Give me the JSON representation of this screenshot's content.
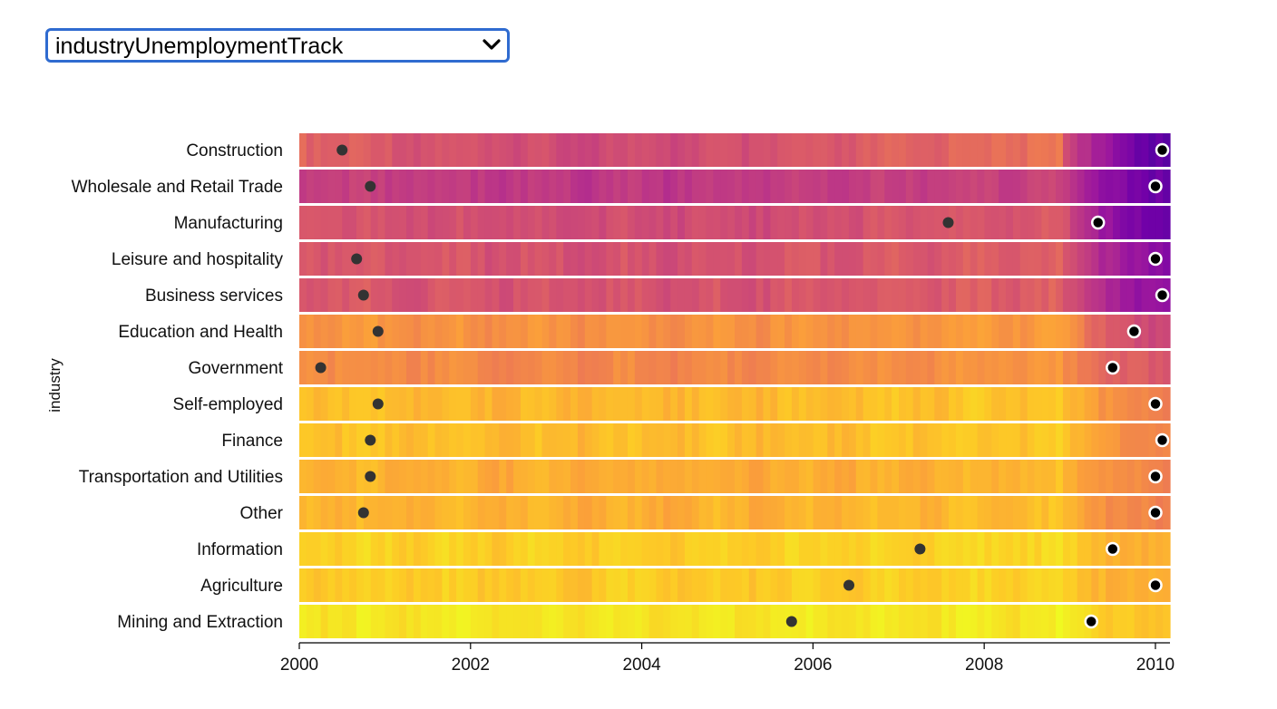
{
  "controls": {
    "dataset_select": {
      "selected": "industryUnemploymentTrack"
    }
  },
  "chart_data": {
    "type": "heatmap",
    "title": "",
    "xlabel": "",
    "ylabel": "industry",
    "xlim": [
      2000,
      2010.17
    ],
    "x_ticks": [
      "2000",
      "2002",
      "2004",
      "2006",
      "2008",
      "2010"
    ],
    "color_scale": "plasma (low = yellow, high = dark purple)",
    "colors": {
      "low": "#f0f921",
      "high": "#3e049c",
      "row_gap": "#ffffff",
      "dot": "#333333",
      "max_marker": "#000000"
    },
    "rows": [
      {
        "name": "Construction",
        "min_date": 2000.5,
        "max_date": 2010.08,
        "level": [
          0.3,
          0.55,
          0.92
        ]
      },
      {
        "name": "Wholesale and Retail Trade",
        "min_date": 2000.83,
        "max_date": 2010.0,
        "level": [
          0.55,
          0.62,
          0.9
        ]
      },
      {
        "name": "Manufacturing",
        "min_date": 2007.58,
        "max_date": 2009.33,
        "level": [
          0.45,
          0.55,
          0.9
        ]
      },
      {
        "name": "Leisure and hospitality",
        "min_date": 2000.67,
        "max_date": 2010.0,
        "level": [
          0.44,
          0.52,
          0.8
        ]
      },
      {
        "name": "Business services",
        "min_date": 2000.75,
        "max_date": 2010.08,
        "level": [
          0.44,
          0.52,
          0.8
        ]
      },
      {
        "name": "Education and Health",
        "min_date": 2000.92,
        "max_date": 2009.75,
        "level": [
          0.25,
          0.3,
          0.58
        ]
      },
      {
        "name": "Government",
        "min_date": 2000.25,
        "max_date": 2009.5,
        "level": [
          0.25,
          0.33,
          0.5
        ]
      },
      {
        "name": "Self-employed",
        "min_date": 2000.92,
        "max_date": 2010.0,
        "level": [
          0.12,
          0.18,
          0.36
        ]
      },
      {
        "name": "Finance",
        "min_date": 2000.83,
        "max_date": 2010.08,
        "level": [
          0.12,
          0.17,
          0.34
        ]
      },
      {
        "name": "Transportation and Utilities",
        "min_date": 2000.83,
        "max_date": 2010.0,
        "level": [
          0.15,
          0.22,
          0.34
        ]
      },
      {
        "name": "Other",
        "min_date": 2000.75,
        "max_date": 2010.0,
        "level": [
          0.14,
          0.2,
          0.36
        ]
      },
      {
        "name": "Information",
        "min_date": 2007.25,
        "max_date": 2009.5,
        "level": [
          0.08,
          0.12,
          0.22
        ]
      },
      {
        "name": "Agriculture",
        "min_date": 2006.42,
        "max_date": 2010.0,
        "level": [
          0.1,
          0.13,
          0.22
        ]
      },
      {
        "name": "Mining and Extraction",
        "min_date": 2005.75,
        "max_date": 2009.25,
        "level": [
          0.03,
          0.06,
          0.16
        ]
      }
    ]
  }
}
